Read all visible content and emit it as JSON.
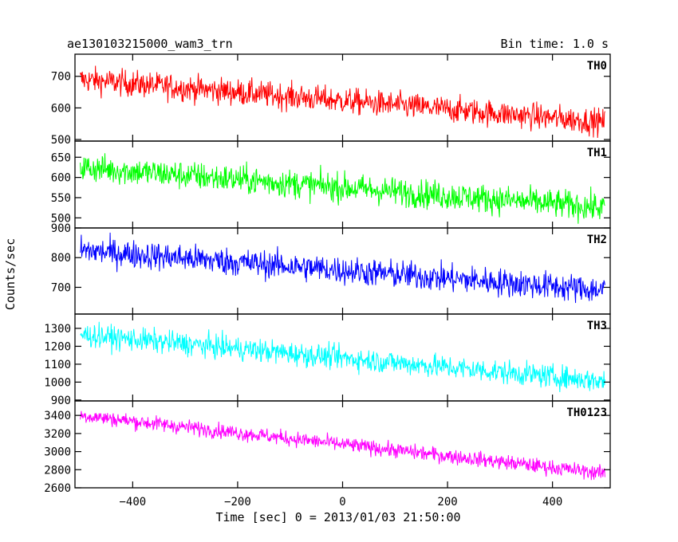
{
  "header": {
    "title": "ae130103215000_wam3_trn",
    "bin_time": "Bin time: 1.0 s"
  },
  "chart_data": {
    "type": "line",
    "xlabel": "Time [sec] 0 = 2013/01/03 21:50:00",
    "ylabel": "Counts/sec",
    "xlim": [
      -510,
      510
    ],
    "x_ticks": [
      -400,
      -200,
      0,
      200,
      400
    ],
    "x_range": [
      -500,
      500
    ],
    "bin_time_s": 1.0,
    "panels": [
      {
        "name": "TH0",
        "color": "#ff0000",
        "ylim": [
          495,
          770
        ],
        "ticks": [
          500,
          600,
          700
        ],
        "trend_start": 690,
        "trend_end": 555,
        "noise": 35
      },
      {
        "name": "TH1",
        "color": "#00ff00",
        "ylim": [
          475,
          690
        ],
        "ticks": [
          500,
          550,
          600,
          650
        ],
        "trend_start": 625,
        "trend_end": 525,
        "noise": 30
      },
      {
        "name": "TH2",
        "color": "#0000ff",
        "ylim": [
          610,
          900
        ],
        "ticks": [
          700,
          800,
          900
        ],
        "trend_start": 825,
        "trend_end": 690,
        "noise": 40
      },
      {
        "name": "TH3",
        "color": "#00ffff",
        "ylim": [
          895,
          1380
        ],
        "ticks": [
          900,
          1000,
          1100,
          1200,
          1300
        ],
        "trend_start": 1265,
        "trend_end": 1005,
        "noise": 55
      },
      {
        "name": "TH0123",
        "color": "#ff00ff",
        "ylim": [
          2600,
          3560
        ],
        "ticks": [
          2600,
          2800,
          3000,
          3200,
          3400
        ],
        "trend_start": 3400,
        "trend_end": 2760,
        "noise": 70
      }
    ]
  }
}
